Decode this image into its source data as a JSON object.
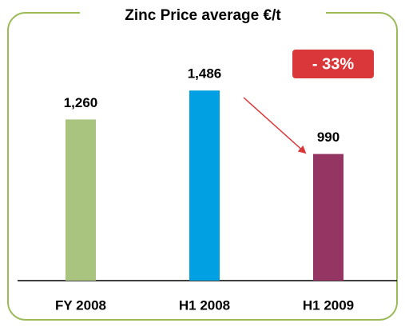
{
  "chart_data": {
    "type": "bar",
    "title": "Zinc Price average €/t",
    "categories": [
      "FY 2008",
      "H1 2008",
      "H1 2009"
    ],
    "values": [
      1260,
      1486,
      990
    ],
    "value_labels": [
      "1,260",
      "1,486",
      "990"
    ],
    "colors": [
      "#a9c47f",
      "#00a0e3",
      "#953563"
    ],
    "ylim": [
      0,
      1600
    ],
    "annotation": "- 33%"
  }
}
